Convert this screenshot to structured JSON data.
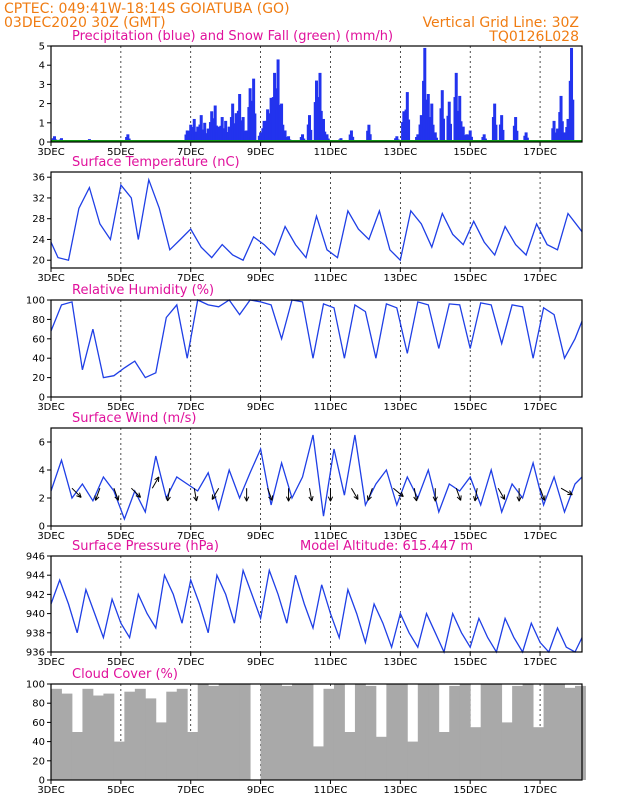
{
  "header": {
    "line1": "CPTEC:   049:41W-18:14S   GOIATUBA (GO)",
    "line2": "03DEC2020 30Z (GMT)",
    "grid_note": "Vertical Grid Line: 30Z",
    "code": "TQ0126L028"
  },
  "colors": {
    "precip": "#2233ee",
    "snow": "#119911",
    "line": "#1f3fe6",
    "cloud": "#a9a9a9",
    "title": "#e0119c",
    "header": "#f07c12"
  },
  "chart_data": [
    {
      "id": "precip",
      "type": "bar",
      "title": "Precipitation (blue) and Snow Fall (green) (mm/h)",
      "ylim": [
        0,
        5
      ],
      "yticks": [
        0,
        1,
        2,
        3,
        4,
        5
      ],
      "x_start_day": 3,
      "x_end_day": 18.2,
      "series": [
        {
          "name": "Precipitation",
          "x": [
            3.1,
            3.3,
            4.1,
            5.2,
            6.9,
            7.0,
            7.1,
            7.2,
            7.3,
            7.4,
            7.5,
            7.6,
            7.7,
            7.8,
            7.9,
            8.0,
            8.1,
            8.2,
            8.3,
            8.4,
            8.5,
            8.6,
            8.7,
            8.8,
            9.0,
            9.1,
            9.2,
            9.3,
            9.4,
            9.5,
            9.6,
            9.7,
            9.8,
            10.2,
            10.4,
            10.6,
            10.7,
            10.8,
            10.9,
            11.3,
            11.6,
            12.1,
            12.9,
            13.1,
            13.2,
            13.5,
            13.6,
            13.7,
            13.8,
            13.9,
            14.0,
            14.2,
            14.4,
            14.6,
            14.7,
            14.8,
            14.9,
            15.0,
            15.4,
            15.7,
            15.9,
            16.3,
            16.6,
            17.4,
            17.5,
            17.6,
            17.7,
            17.8,
            17.9
          ],
          "values": [
            0.3,
            0.2,
            0.15,
            0.4,
            0.6,
            0.9,
            1.2,
            0.8,
            1.4,
            1.0,
            0.7,
            1.6,
            1.9,
            0.8,
            1.3,
            1.1,
            0.8,
            2.0,
            1.5,
            2.5,
            1.3,
            0.6,
            2.8,
            3.3,
            0.5,
            1.1,
            1.7,
            2.3,
            3.6,
            4.3,
            2.0,
            0.6,
            0.3,
            0.4,
            1.4,
            3.2,
            3.6,
            1.2,
            0.4,
            0.2,
            0.6,
            0.9,
            0.3,
            1.6,
            2.6,
            0.4,
            1.4,
            4.9,
            2.5,
            2.0,
            0.5,
            2.7,
            2.1,
            3.6,
            2.4,
            0.8,
            0.4,
            0.6,
            0.4,
            2.0,
            1.4,
            1.3,
            0.5,
            1.1,
            0.7,
            2.4,
            0.5,
            1.2,
            4.9
          ]
        },
        {
          "name": "Snow Fall",
          "x": [
            3.0,
            18.2
          ],
          "values": [
            0,
            0
          ]
        }
      ]
    },
    {
      "id": "temperature",
      "type": "line",
      "title": "Surface Temperature (nC)",
      "ylim": [
        18.5,
        37
      ],
      "yticks": [
        20,
        24,
        28,
        32,
        36
      ],
      "series": [
        {
          "name": "",
          "x": [
            3.0,
            3.2,
            3.5,
            3.8,
            4.1,
            4.4,
            4.7,
            5.0,
            5.3,
            5.5,
            5.8,
            6.1,
            6.4,
            6.7,
            7.0,
            7.3,
            7.6,
            7.9,
            8.2,
            8.5,
            8.8,
            9.1,
            9.4,
            9.7,
            10.0,
            10.3,
            10.6,
            10.9,
            11.2,
            11.5,
            11.8,
            12.1,
            12.4,
            12.7,
            13.0,
            13.3,
            13.6,
            13.9,
            14.2,
            14.5,
            14.8,
            15.1,
            15.4,
            15.7,
            16.0,
            16.3,
            16.6,
            16.9,
            17.2,
            17.5,
            17.8,
            18.2
          ],
          "values": [
            23.5,
            20.5,
            20.0,
            30.0,
            34.0,
            27.0,
            24.0,
            34.5,
            32.0,
            24.0,
            35.5,
            30.0,
            22.0,
            24.0,
            26.0,
            22.5,
            20.5,
            23.0,
            21.0,
            20.0,
            24.5,
            23.0,
            21.0,
            26.5,
            23.0,
            20.5,
            28.5,
            22.0,
            20.5,
            29.5,
            26.0,
            24.0,
            29.5,
            22.0,
            20.0,
            29.5,
            27.0,
            22.5,
            29.0,
            25.0,
            23.0,
            27.5,
            23.5,
            21.0,
            26.5,
            23.0,
            21.0,
            27.0,
            23.0,
            22.0,
            29.0,
            25.5
          ]
        }
      ]
    },
    {
      "id": "humidity",
      "type": "line",
      "title": "Relative Humidity (%)",
      "ylim": [
        0,
        100
      ],
      "yticks": [
        0,
        20,
        40,
        60,
        80,
        100
      ],
      "series": [
        {
          "name": "",
          "x": [
            3.0,
            3.3,
            3.6,
            3.9,
            4.2,
            4.5,
            4.8,
            5.1,
            5.4,
            5.7,
            6.0,
            6.3,
            6.6,
            6.9,
            7.2,
            7.5,
            7.8,
            8.1,
            8.4,
            8.7,
            9.0,
            9.3,
            9.6,
            9.9,
            10.2,
            10.5,
            10.8,
            11.1,
            11.4,
            11.7,
            12.0,
            12.3,
            12.6,
            12.9,
            13.2,
            13.5,
            13.8,
            14.1,
            14.4,
            14.7,
            15.0,
            15.3,
            15.6,
            15.9,
            16.2,
            16.5,
            16.8,
            17.1,
            17.4,
            17.7,
            18.0,
            18.2
          ],
          "values": [
            68,
            95,
            98,
            28,
            70,
            20,
            22,
            30,
            37,
            20,
            25,
            82,
            95,
            40,
            100,
            95,
            93,
            100,
            85,
            100,
            98,
            95,
            60,
            100,
            98,
            40,
            96,
            92,
            40,
            95,
            88,
            40,
            96,
            92,
            45,
            98,
            95,
            50,
            96,
            95,
            50,
            97,
            95,
            55,
            95,
            93,
            40,
            92,
            85,
            40,
            60,
            78
          ]
        }
      ]
    },
    {
      "id": "wind",
      "type": "line",
      "title": "Surface Wind (m/s)",
      "ylim": [
        0,
        7
      ],
      "yticks": [
        0,
        2,
        4,
        6
      ],
      "series": [
        {
          "name": "",
          "x": [
            3.0,
            3.3,
            3.6,
            3.9,
            4.2,
            4.5,
            4.8,
            5.1,
            5.4,
            5.7,
            6.0,
            6.3,
            6.6,
            6.9,
            7.2,
            7.5,
            7.8,
            8.1,
            8.4,
            8.7,
            9.0,
            9.3,
            9.6,
            9.9,
            10.2,
            10.5,
            10.8,
            11.1,
            11.4,
            11.7,
            12.0,
            12.3,
            12.6,
            12.9,
            13.2,
            13.5,
            13.8,
            14.1,
            14.4,
            14.7,
            15.0,
            15.3,
            15.6,
            15.9,
            16.2,
            16.5,
            16.8,
            17.1,
            17.4,
            17.7,
            18.0,
            18.2
          ],
          "values": [
            2.5,
            4.7,
            2.0,
            3.0,
            1.8,
            3.5,
            2.5,
            0.5,
            2.5,
            1.0,
            5.0,
            2.0,
            3.5,
            3.0,
            2.5,
            3.8,
            1.2,
            4.0,
            2.0,
            3.8,
            5.5,
            1.5,
            4.5,
            2.0,
            3.5,
            6.5,
            0.7,
            5.5,
            2.2,
            6.5,
            1.5,
            3.0,
            4.0,
            1.5,
            3.5,
            2.0,
            4.0,
            1.0,
            3.0,
            2.5,
            3.5,
            1.5,
            4.0,
            1.0,
            3.0,
            2.0,
            4.5,
            1.5,
            3.5,
            1.0,
            3.0,
            3.5
          ]
        }
      ]
    },
    {
      "id": "pressure",
      "type": "line",
      "title": "Surface Pressure (hPa)",
      "annotation": "Model Altitude: 615.447 m",
      "ylim": [
        936,
        946
      ],
      "yticks": [
        936,
        938,
        940,
        942,
        944,
        946
      ],
      "series": [
        {
          "name": "",
          "x": [
            3.0,
            3.25,
            3.5,
            3.75,
            4.0,
            4.25,
            4.5,
            4.75,
            5.0,
            5.25,
            5.5,
            5.75,
            6.0,
            6.25,
            6.5,
            6.75,
            7.0,
            7.25,
            7.5,
            7.75,
            8.0,
            8.25,
            8.5,
            8.75,
            9.0,
            9.25,
            9.5,
            9.75,
            10.0,
            10.25,
            10.5,
            10.75,
            11.0,
            11.25,
            11.5,
            11.75,
            12.0,
            12.25,
            12.5,
            12.75,
            13.0,
            13.25,
            13.5,
            13.75,
            14.0,
            14.25,
            14.5,
            14.75,
            15.0,
            15.25,
            15.5,
            15.75,
            16.0,
            16.25,
            16.5,
            16.75,
            17.0,
            17.25,
            17.5,
            17.75,
            18.0,
            18.2
          ],
          "values": [
            941.0,
            943.5,
            941.0,
            938.0,
            942.5,
            940.0,
            937.5,
            941.5,
            939.0,
            937.5,
            942.0,
            940.0,
            938.5,
            944.0,
            942.0,
            939.0,
            943.5,
            941.0,
            938.0,
            944.0,
            942.0,
            939.0,
            944.5,
            942.0,
            939.5,
            944.5,
            942.0,
            939.0,
            944.0,
            941.0,
            938.5,
            943.0,
            940.0,
            937.5,
            942.5,
            940.0,
            937.0,
            941.0,
            939.0,
            936.5,
            940.0,
            938.0,
            936.5,
            940.0,
            938.0,
            936.0,
            940.0,
            938.0,
            936.5,
            939.5,
            937.5,
            936.0,
            939.5,
            937.5,
            936.0,
            939.0,
            937.0,
            936.0,
            938.5,
            936.5,
            936.0,
            937.5
          ]
        }
      ]
    },
    {
      "id": "cloud",
      "type": "bar",
      "title": "Cloud Cover (%)",
      "ylim": [
        0,
        100
      ],
      "yticks": [
        0,
        20,
        40,
        60,
        80,
        100
      ],
      "series": [
        {
          "name": "",
          "x": [
            3.0,
            3.3,
            3.6,
            3.9,
            4.2,
            4.5,
            4.8,
            5.1,
            5.4,
            5.7,
            6.0,
            6.3,
            6.6,
            6.9,
            7.2,
            7.5,
            7.8,
            8.1,
            8.4,
            8.7,
            9.0,
            9.3,
            9.6,
            9.9,
            10.2,
            10.5,
            10.8,
            11.1,
            11.4,
            11.7,
            12.0,
            12.3,
            12.6,
            12.9,
            13.2,
            13.5,
            13.8,
            14.1,
            14.4,
            14.7,
            15.0,
            15.3,
            15.6,
            15.9,
            16.2,
            16.5,
            16.8,
            17.1,
            17.4,
            17.7,
            18.0
          ],
          "values": [
            95,
            90,
            50,
            95,
            88,
            90,
            40,
            92,
            95,
            85,
            60,
            92,
            95,
            50,
            100,
            98,
            100,
            100,
            100,
            0,
            100,
            100,
            98,
            100,
            100,
            35,
            95,
            100,
            50,
            100,
            98,
            45,
            100,
            100,
            40,
            100,
            100,
            50,
            98,
            100,
            55,
            100,
            100,
            60,
            98,
            100,
            55,
            100,
            100,
            96,
            98
          ]
        }
      ]
    }
  ],
  "x_axis": {
    "tick_days": [
      3,
      5,
      7,
      9,
      11,
      13,
      15,
      17
    ],
    "tick_labels": [
      "3DEC",
      "5DEC",
      "7DEC",
      "9DEC",
      "11DEC",
      "13DEC",
      "15DEC",
      "17DEC"
    ]
  },
  "wind_arrows": [
    {
      "day": 3.6,
      "dir": 135
    },
    {
      "day": 4.4,
      "dir": 200
    },
    {
      "day": 4.8,
      "dir": 160
    },
    {
      "day": 5.3,
      "dir": 135
    },
    {
      "day": 5.9,
      "dir": 30
    },
    {
      "day": 6.4,
      "dir": 190
    },
    {
      "day": 7.1,
      "dir": 170
    },
    {
      "day": 7.8,
      "dir": 210
    },
    {
      "day": 8.6,
      "dir": 180
    },
    {
      "day": 9.2,
      "dir": 160
    },
    {
      "day": 9.8,
      "dir": 180
    },
    {
      "day": 10.4,
      "dir": 170
    },
    {
      "day": 11.0,
      "dir": 180
    },
    {
      "day": 11.6,
      "dir": 150
    },
    {
      "day": 12.2,
      "dir": 200
    },
    {
      "day": 12.8,
      "dir": 130
    },
    {
      "day": 13.4,
      "dir": 170
    },
    {
      "day": 14.0,
      "dir": 180
    },
    {
      "day": 14.6,
      "dir": 160
    },
    {
      "day": 15.2,
      "dir": 190
    },
    {
      "day": 15.8,
      "dir": 150
    },
    {
      "day": 16.4,
      "dir": 180
    },
    {
      "day": 17.0,
      "dir": 160
    },
    {
      "day": 17.6,
      "dir": 120
    }
  ]
}
